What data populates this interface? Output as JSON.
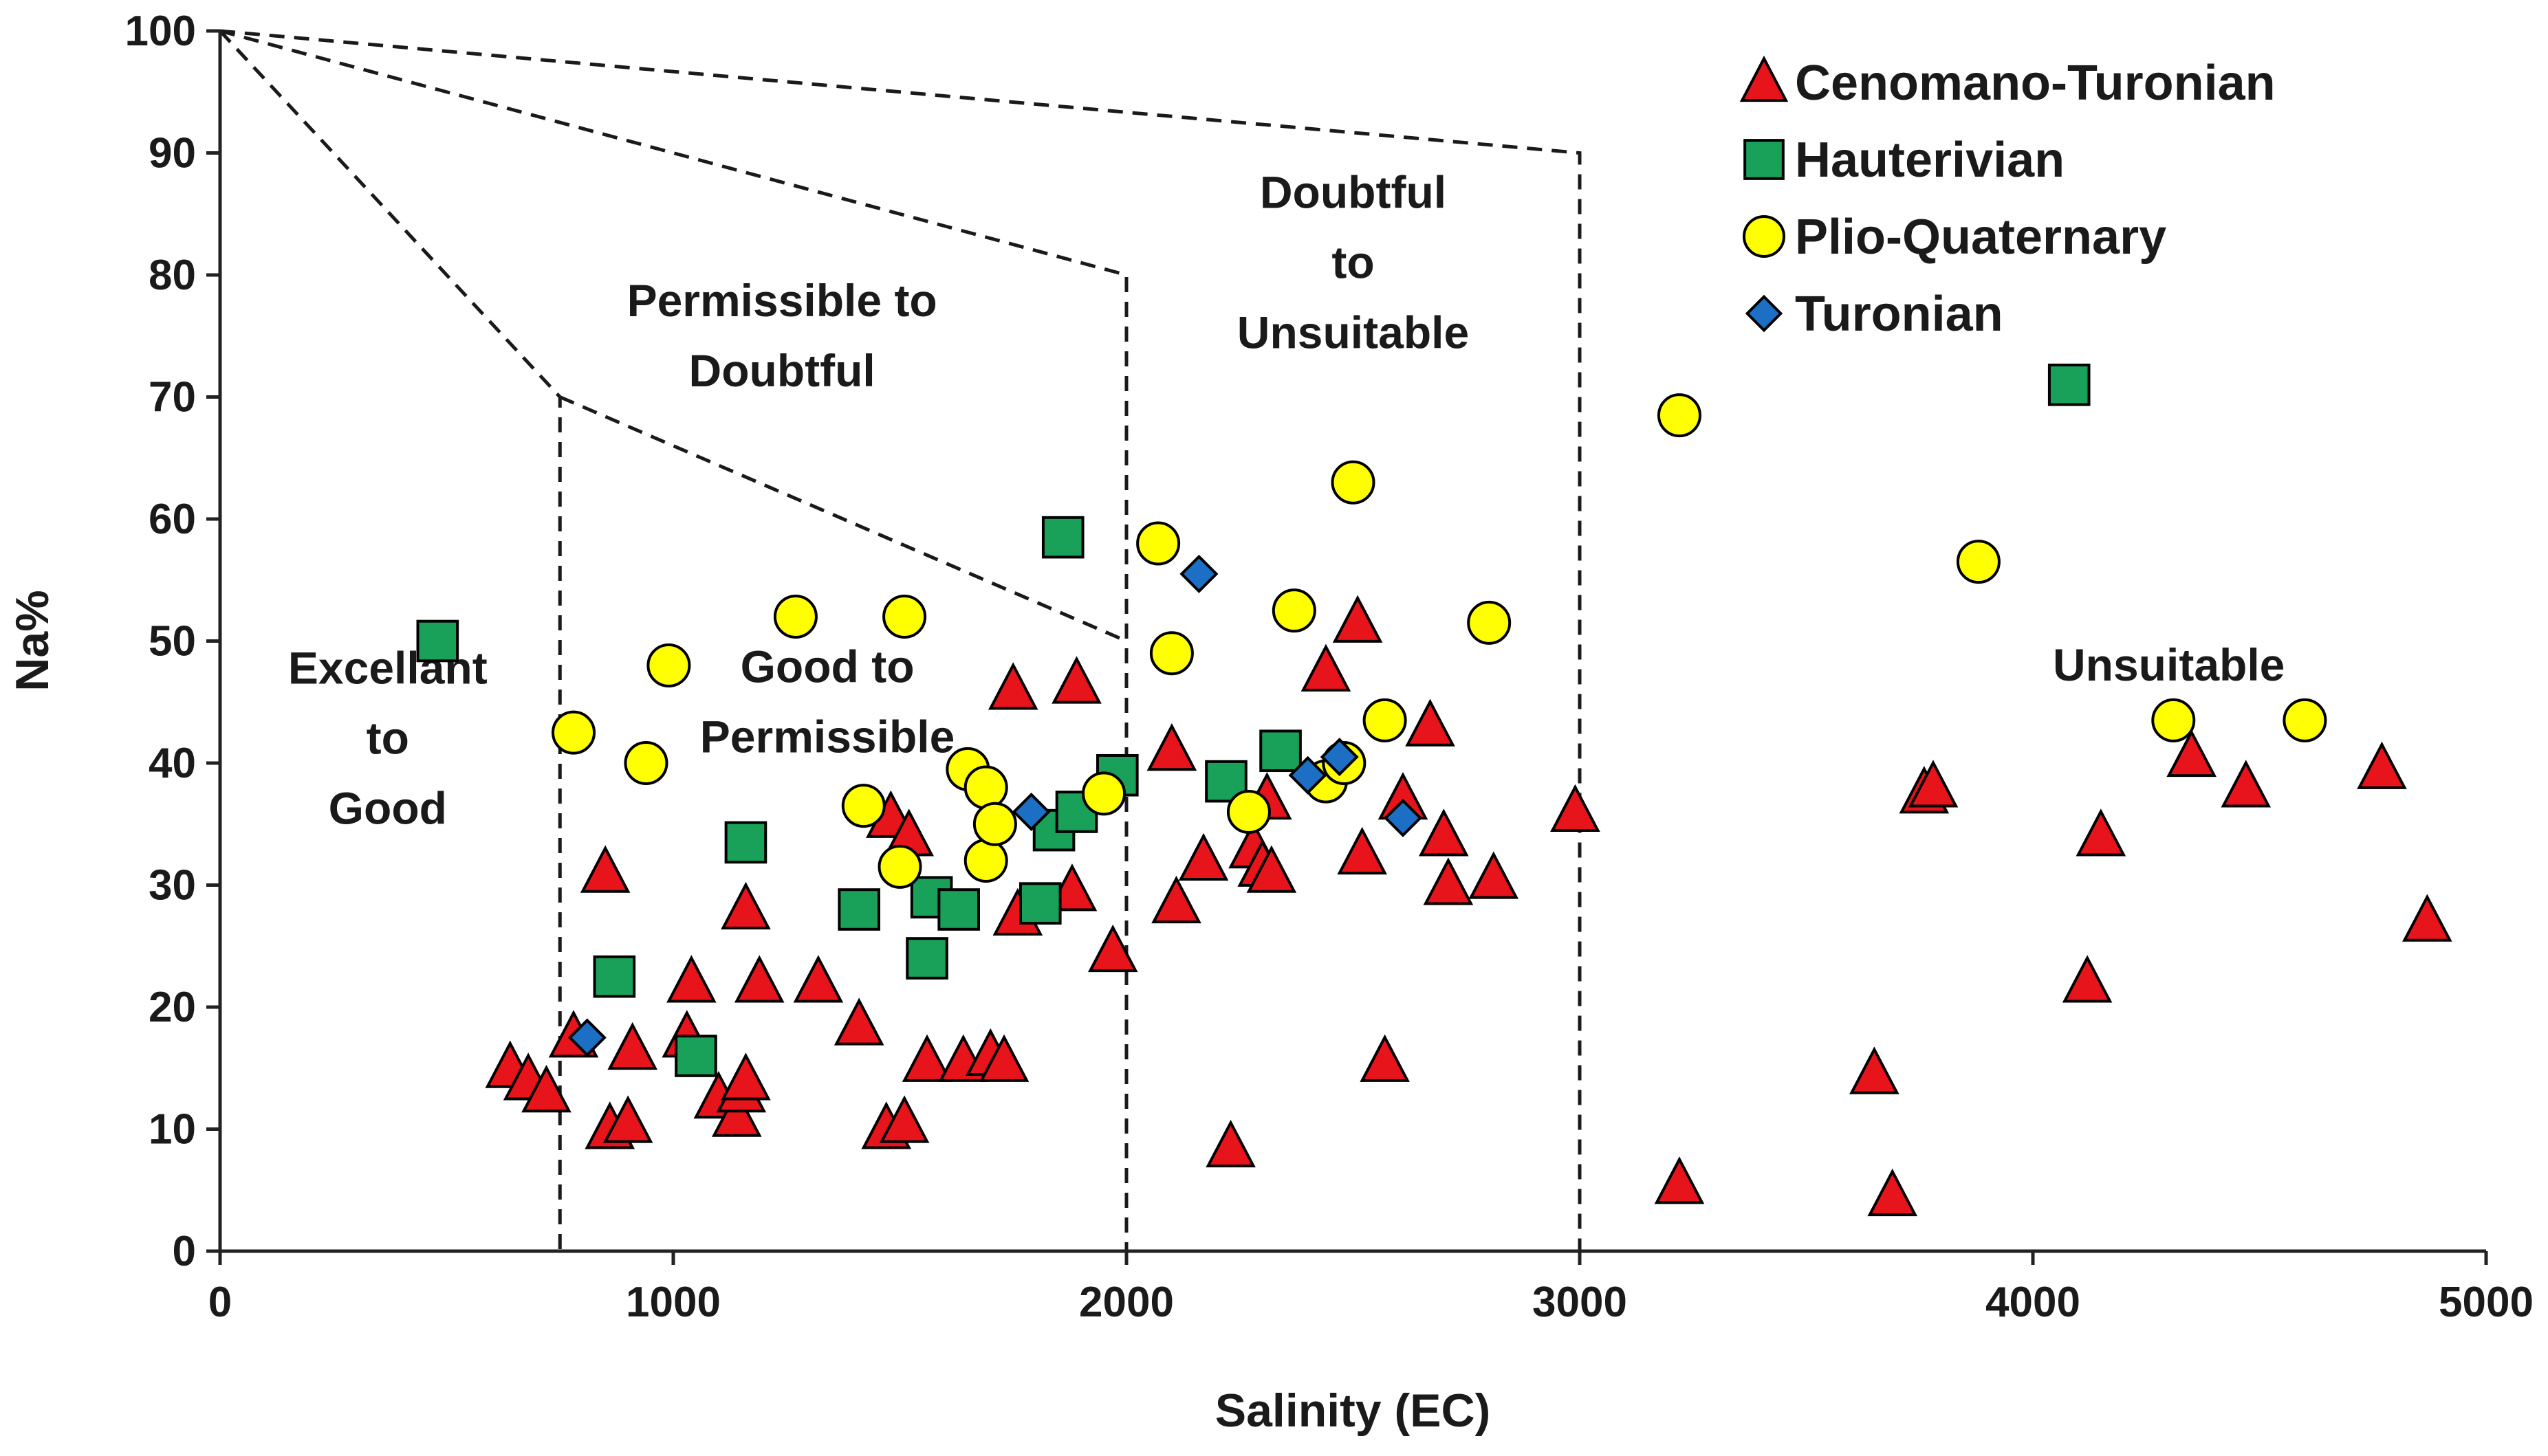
{
  "chart_data": {
    "type": "scatter",
    "xlabel": "Salinity (EC)",
    "ylabel": "Na%",
    "xlim": [
      0,
      5000
    ],
    "ylim": [
      0,
      100
    ],
    "xticks": [
      "0",
      "1000",
      "2000",
      "3000",
      "4000",
      "5000"
    ],
    "yticks": [
      "0",
      "10",
      "20",
      "30",
      "40",
      "50",
      "60",
      "70",
      "80",
      "90",
      "100"
    ],
    "grid": false,
    "legend_position": "top-right",
    "boundaries": [
      [
        [
          0,
          100
        ],
        [
          750,
          70
        ],
        [
          750,
          0
        ]
      ],
      [
        [
          0,
          100
        ],
        [
          2000,
          80
        ],
        [
          2000,
          0
        ]
      ],
      [
        [
          0,
          100
        ],
        [
          3000,
          90
        ],
        [
          3000,
          0
        ]
      ],
      [
        [
          750,
          70
        ],
        [
          2000,
          50
        ]
      ]
    ],
    "region_labels": [
      {
        "lines": [
          "Excellant",
          "to",
          "Good"
        ],
        "x": 370,
        "y": 42
      },
      {
        "lines": [
          "Good to",
          "Permissible"
        ],
        "x": 1340,
        "y": 45
      },
      {
        "lines": [
          "Permissible to",
          "Doubtful"
        ],
        "x": 1240,
        "y": 75
      },
      {
        "lines": [
          "Doubtful",
          "to",
          "Unsuitable"
        ],
        "x": 2500,
        "y": 81
      },
      {
        "lines": [
          "Unsuitable"
        ],
        "x": 4300,
        "y": 48
      }
    ],
    "series": [
      {
        "name": "Cenomano-Turonian",
        "marker": "triangle",
        "color": "#e8141c",
        "points": [
          [
            640,
            15
          ],
          [
            680,
            14
          ],
          [
            720,
            13
          ],
          [
            780,
            17.5
          ],
          [
            850,
            31
          ],
          [
            860,
            10
          ],
          [
            900,
            10.5
          ],
          [
            910,
            16.5
          ],
          [
            1030,
            17.5
          ],
          [
            1040,
            22
          ],
          [
            1100,
            12.5
          ],
          [
            1140,
            11
          ],
          [
            1150,
            13
          ],
          [
            1160,
            14
          ],
          [
            1160,
            28
          ],
          [
            1190,
            22
          ],
          [
            1320,
            22
          ],
          [
            1410,
            18.5
          ],
          [
            1470,
            10
          ],
          [
            1480,
            35.5
          ],
          [
            1510,
            10.5
          ],
          [
            1520,
            34
          ],
          [
            1560,
            15.5
          ],
          [
            1640,
            15.5
          ],
          [
            1700,
            16
          ],
          [
            1730,
            15.5
          ],
          [
            1750,
            46
          ],
          [
            1760,
            27.5
          ],
          [
            1880,
            29.5
          ],
          [
            1890,
            46.5
          ],
          [
            1970,
            24.5
          ],
          [
            2100,
            41
          ],
          [
            2110,
            28.5
          ],
          [
            2170,
            32
          ],
          [
            2230,
            8.5
          ],
          [
            2280,
            33
          ],
          [
            2300,
            31.5
          ],
          [
            2310,
            37
          ],
          [
            2320,
            31
          ],
          [
            2440,
            47.5
          ],
          [
            2510,
            51.5
          ],
          [
            2520,
            32.5
          ],
          [
            2570,
            15.5
          ],
          [
            2610,
            37
          ],
          [
            2670,
            43
          ],
          [
            2700,
            34
          ],
          [
            2710,
            30
          ],
          [
            2810,
            30.5
          ],
          [
            2990,
            36
          ],
          [
            3220,
            5.5
          ],
          [
            3650,
            14.5
          ],
          [
            3690,
            4.5
          ],
          [
            3760,
            37.5
          ],
          [
            3780,
            38
          ],
          [
            4120,
            22
          ],
          [
            4150,
            34
          ],
          [
            4350,
            40.5
          ],
          [
            4470,
            38
          ],
          [
            4770,
            39.5
          ],
          [
            4870,
            27
          ]
        ]
      },
      {
        "name": "Hauterivian",
        "marker": "square",
        "color": "#19a15a",
        "points": [
          [
            480,
            50
          ],
          [
            870,
            22.5
          ],
          [
            1050,
            16
          ],
          [
            1160,
            33.5
          ],
          [
            1410,
            28
          ],
          [
            1560,
            24
          ],
          [
            1570,
            29
          ],
          [
            1630,
            28
          ],
          [
            1810,
            28.5
          ],
          [
            1840,
            34.5
          ],
          [
            1860,
            58.5
          ],
          [
            1890,
            36
          ],
          [
            1980,
            39
          ],
          [
            2220,
            38.5
          ],
          [
            2340,
            41
          ],
          [
            4080,
            71
          ]
        ]
      },
      {
        "name": "Plio-Quaternary",
        "marker": "circle",
        "color": "#ffff00",
        "points": [
          [
            780,
            42.5
          ],
          [
            940,
            40
          ],
          [
            990,
            48
          ],
          [
            1270,
            52
          ],
          [
            1420,
            36.5
          ],
          [
            1500,
            31.5
          ],
          [
            1510,
            52
          ],
          [
            1650,
            39.5
          ],
          [
            1690,
            38
          ],
          [
            1690,
            32
          ],
          [
            1710,
            35
          ],
          [
            1950,
            37.5
          ],
          [
            2070,
            58
          ],
          [
            2100,
            49
          ],
          [
            2270,
            36
          ],
          [
            2370,
            52.5
          ],
          [
            2440,
            38.5
          ],
          [
            2480,
            40
          ],
          [
            2500,
            63
          ],
          [
            2570,
            43.5
          ],
          [
            2800,
            51.5
          ],
          [
            3220,
            68.5
          ],
          [
            3880,
            56.5
          ],
          [
            4310,
            43.5
          ],
          [
            4600,
            43.5
          ]
        ]
      },
      {
        "name": "Turonian",
        "marker": "diamond",
        "color": "#1c6fc4",
        "points": [
          [
            810,
            17.5
          ],
          [
            1790,
            36
          ],
          [
            2160,
            55.5
          ],
          [
            2400,
            39
          ],
          [
            2470,
            40.5
          ],
          [
            2610,
            35.5
          ]
        ]
      }
    ]
  }
}
